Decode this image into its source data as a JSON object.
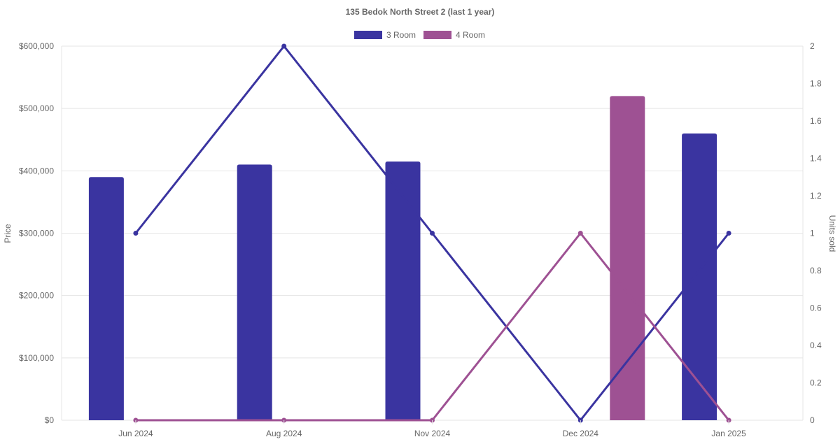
{
  "chart_data": {
    "type": "bar",
    "title": "135 Bedok North Street 2 (last 1 year)",
    "categories": [
      "Jun 2024",
      "Aug 2024",
      "Nov 2024",
      "Dec 2024",
      "Jan 2025"
    ],
    "ylabel": "Price",
    "y2label": "Units sold",
    "ylim": [
      0,
      600000
    ],
    "y2lim": [
      0,
      2
    ],
    "yticks": [
      "$0",
      "$100,000",
      "$200,000",
      "$300,000",
      "$400,000",
      "$500,000",
      "$600,000"
    ],
    "y2ticks": [
      "0",
      "0.2",
      "0.4",
      "0.6",
      "0.8",
      "1",
      "1.2",
      "1.4",
      "1.6",
      "1.8",
      "2"
    ],
    "grid": true,
    "legend_position": "top",
    "series": [
      {
        "name": "3 Room",
        "color": "#3a34a0",
        "bar_values": [
          390000,
          410000,
          415000,
          null,
          460000
        ],
        "units_sold": [
          1,
          2,
          1,
          0,
          1
        ]
      },
      {
        "name": "4 Room",
        "color": "#9e5193",
        "bar_values": [
          null,
          null,
          null,
          520000,
          null
        ],
        "units_sold": [
          0,
          0,
          0,
          1,
          0
        ]
      }
    ]
  }
}
